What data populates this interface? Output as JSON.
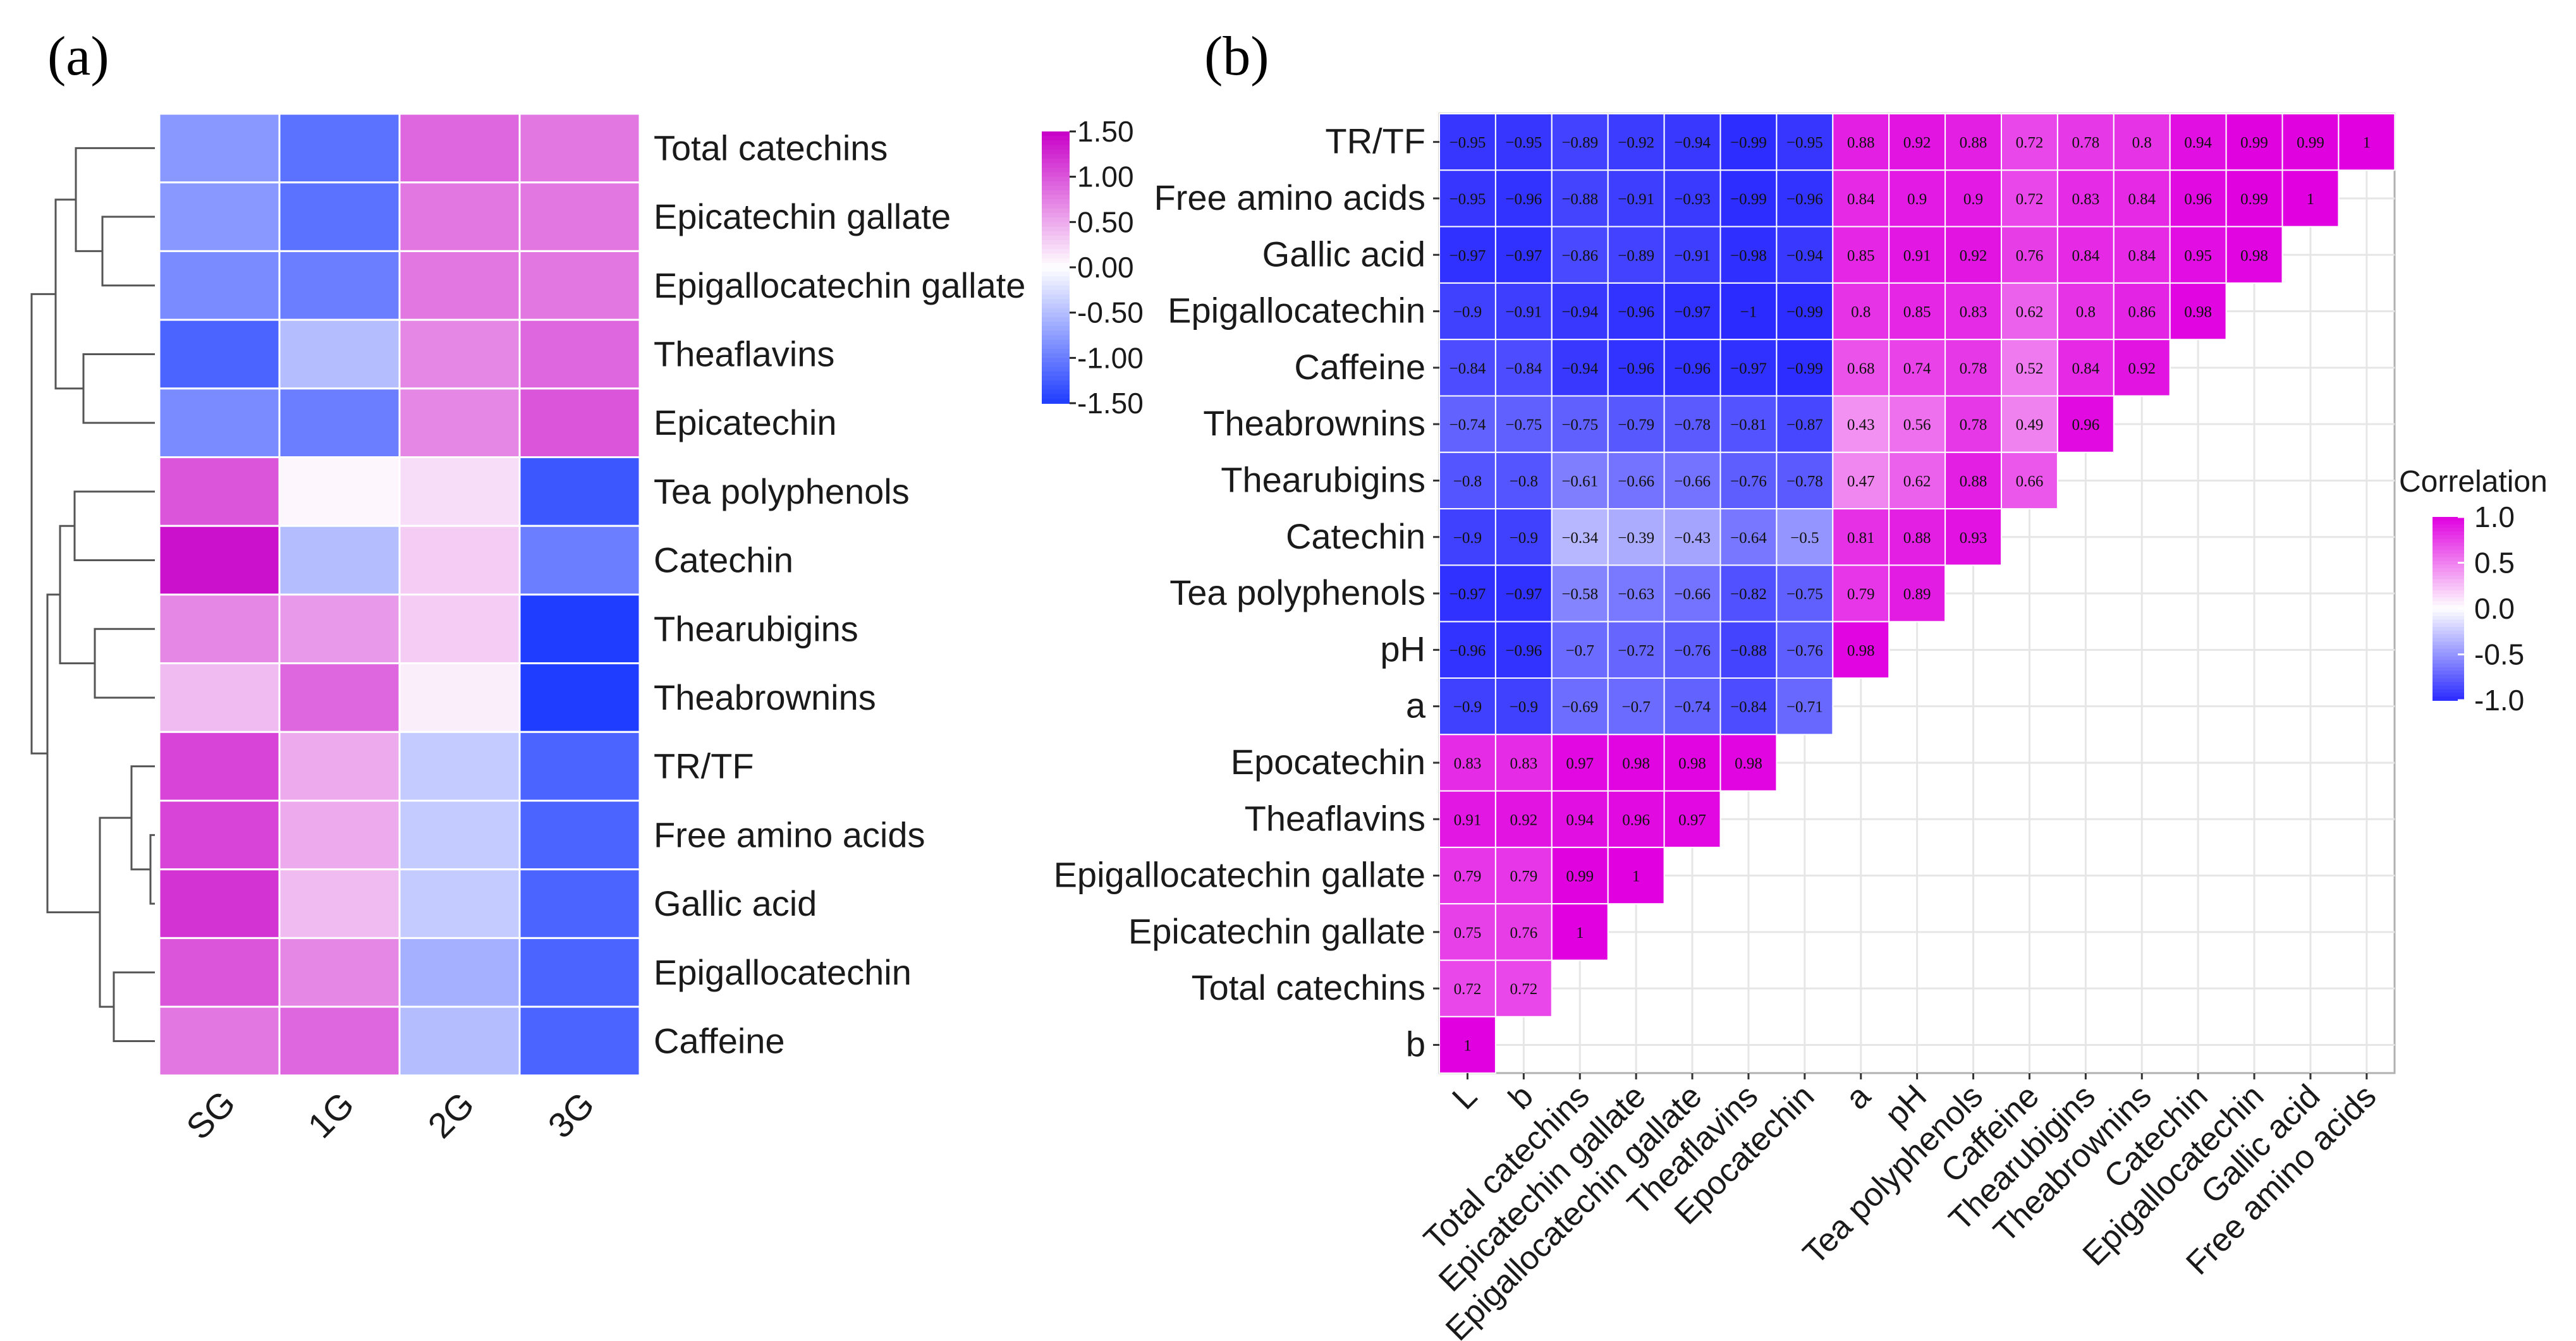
{
  "chart_data": [
    {
      "panel": "(a)",
      "type": "heatmap",
      "title": "",
      "columns": [
        "SG",
        "1G",
        "2G",
        "3G"
      ],
      "rows": [
        "Total catechins",
        "Epicatechin gallate",
        "Epigallocatechin gallate",
        "Theaflavins",
        "Epicatechin",
        "Tea polyphenols",
        "Catechin",
        "Thearubigins",
        "Theabrownins",
        "TR/TF",
        "Free amino acids",
        "Gallic acid",
        "Epigallocatechin",
        "Caffeine"
      ],
      "values": [
        [
          -0.8,
          -1.1,
          0.9,
          0.8
        ],
        [
          -0.8,
          -1.1,
          0.8,
          0.8
        ],
        [
          -0.9,
          -1.0,
          0.8,
          0.8
        ],
        [
          -1.2,
          -0.5,
          0.7,
          0.9
        ],
        [
          -0.9,
          -1.0,
          0.7,
          1.0
        ],
        [
          1.0,
          0.05,
          0.2,
          -1.3
        ],
        [
          1.4,
          -0.5,
          0.3,
          -1.0
        ],
        [
          0.7,
          0.6,
          0.3,
          -1.5
        ],
        [
          0.4,
          0.9,
          0.1,
          -1.5
        ],
        [
          1.1,
          0.5,
          -0.4,
          -1.2
        ],
        [
          1.1,
          0.5,
          -0.4,
          -1.2
        ],
        [
          1.2,
          0.4,
          -0.4,
          -1.2
        ],
        [
          1.0,
          0.7,
          -0.6,
          -1.2
        ],
        [
          0.8,
          0.9,
          -0.5,
          -1.2
        ]
      ],
      "dendrogram": "hierarchical clustering of rows (left)",
      "legend": {
        "ticks": [
          "1.50",
          "1.00",
          "0.50",
          "0.00",
          "-0.50",
          "-1.00",
          "-1.50"
        ],
        "min": -1.5,
        "max": 1.5,
        "low_color": "#1f3dff",
        "mid_color": "#ffffff",
        "high_color": "#c800c8"
      }
    },
    {
      "panel": "(b)",
      "type": "heatmap",
      "title": "",
      "row_labels": [
        "TR/TF",
        "Free amino acids",
        "Gallic acid",
        "Epigallocatechin",
        "Caffeine",
        "Theabrownins",
        "Thearubigins",
        "Catechin",
        "Tea polyphenols",
        "pH",
        "a",
        "Epocatechin",
        "Theaflavins",
        "Epigallocatechin gallate",
        "Epicatechin gallate",
        "Total catechins",
        "b"
      ],
      "col_labels": [
        "L",
        "b",
        "Total catechins",
        "Epicatechin gallate",
        "Epigallocatechin gallate",
        "Theaflavins",
        "Epocatechin",
        "a",
        "pH",
        "Tea polyphenols",
        "Caffeine",
        "Thearubigins",
        "Theabrownins",
        "Catechin",
        "Epigallocatechin",
        "Gallic acid",
        "Free amino acids"
      ],
      "matrix": [
        [
          -0.95,
          -0.95,
          -0.89,
          -0.92,
          -0.94,
          -0.99,
          -0.95,
          0.88,
          0.92,
          0.88,
          0.72,
          0.78,
          0.8,
          0.94,
          0.99,
          0.99,
          1
        ],
        [
          -0.95,
          -0.96,
          -0.88,
          -0.91,
          -0.93,
          -0.99,
          -0.96,
          0.84,
          0.9,
          0.9,
          0.72,
          0.83,
          0.84,
          0.96,
          0.99,
          1
        ],
        [
          -0.97,
          -0.97,
          -0.86,
          -0.89,
          -0.91,
          -0.98,
          -0.94,
          0.85,
          0.91,
          0.92,
          0.76,
          0.84,
          0.84,
          0.95,
          0.98
        ],
        [
          -0.9,
          -0.91,
          -0.94,
          -0.96,
          -0.97,
          -1,
          -0.99,
          0.8,
          0.85,
          0.83,
          0.62,
          0.8,
          0.86,
          0.98
        ],
        [
          -0.84,
          -0.84,
          -0.94,
          -0.96,
          -0.96,
          -0.97,
          -0.99,
          0.68,
          0.74,
          0.78,
          0.52,
          0.84,
          0.92
        ],
        [
          -0.74,
          -0.75,
          -0.75,
          -0.79,
          -0.78,
          -0.81,
          -0.87,
          0.43,
          0.56,
          0.78,
          0.49,
          0.96
        ],
        [
          -0.8,
          -0.8,
          -0.61,
          -0.66,
          -0.66,
          -0.76,
          -0.78,
          0.47,
          0.62,
          0.88,
          0.66
        ],
        [
          -0.9,
          -0.9,
          -0.34,
          -0.39,
          -0.43,
          -0.64,
          -0.5,
          0.81,
          0.88,
          0.93
        ],
        [
          -0.97,
          -0.97,
          -0.58,
          -0.63,
          -0.66,
          -0.82,
          -0.75,
          0.79,
          0.89
        ],
        [
          -0.96,
          -0.96,
          -0.7,
          -0.72,
          -0.76,
          -0.88,
          -0.76,
          0.98
        ],
        [
          -0.9,
          -0.9,
          -0.69,
          -0.7,
          -0.74,
          -0.84,
          -0.71
        ],
        [
          0.83,
          0.83,
          0.97,
          0.98,
          0.98,
          0.98
        ],
        [
          0.91,
          0.92,
          0.94,
          0.96,
          0.97
        ],
        [
          0.79,
          0.79,
          0.99,
          1
        ],
        [
          0.75,
          0.76,
          1
        ],
        [
          0.72,
          0.72
        ],
        [
          1
        ]
      ],
      "legend": {
        "title": "Correlation",
        "ticks": [
          "1.0",
          "0.5",
          "0.0",
          "-0.5",
          "-1.0"
        ],
        "min": -1.0,
        "max": 1.0,
        "low_color": "#2b2bff",
        "mid_color": "#ffffff",
        "high_color": "#e000e0"
      }
    }
  ]
}
